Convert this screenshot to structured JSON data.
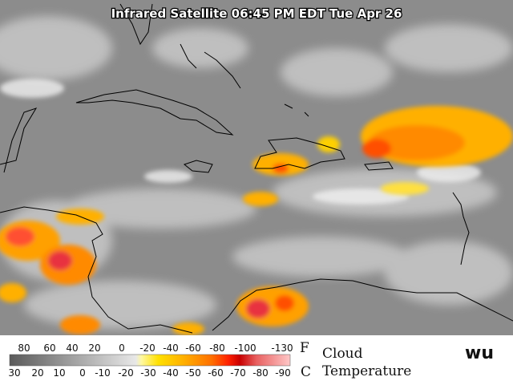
{
  "map": {
    "title": "Infrared Satellite 06:45 PM EDT Tue Apr 26",
    "legend": {
      "fahrenheit": {
        "ticks": [
          80,
          60,
          40,
          20,
          0,
          -20,
          -40,
          -60,
          -80,
          -100,
          -130
        ],
        "unit": "F"
      },
      "celsius": {
        "ticks": [
          30,
          20,
          10,
          0,
          -10,
          -20,
          -30,
          -40,
          -50,
          -60,
          -70,
          -80,
          -90
        ],
        "unit": "C"
      },
      "caption": [
        "Cloud",
        "Temperature"
      ]
    },
    "logo": "wu"
  }
}
